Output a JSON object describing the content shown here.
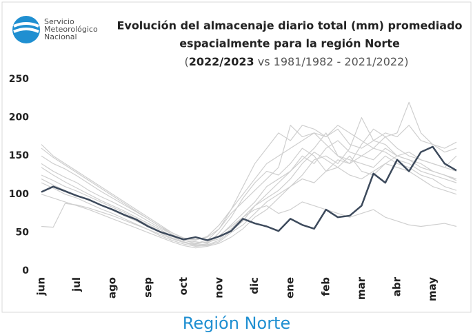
{
  "logo": {
    "line1": "Servicio",
    "line2": "Meteorológico",
    "line3": "Nacional"
  },
  "footer": "Región Norte",
  "chart_data": {
    "type": "line",
    "title": [
      "Evolución del almacenaje diario total (mm) promediado",
      "espacialmente para la región Norte"
    ],
    "subtitle": {
      "open": "(",
      "bold": "2022/2023",
      "rest": " vs 1981/1982 - 2021/2022)"
    },
    "categories": [
      "jun",
      null,
      null,
      "jul",
      null,
      null,
      "ago",
      null,
      null,
      "sep",
      null,
      null,
      "oct",
      null,
      null,
      "nov",
      null,
      null,
      "dic",
      null,
      null,
      "ene",
      null,
      null,
      "feb",
      null,
      null,
      "mar",
      null,
      null,
      "abr",
      null,
      null,
      "may",
      null,
      null
    ],
    "ylim": [
      0,
      250
    ],
    "yticks": [
      0,
      50,
      100,
      150,
      200,
      250
    ],
    "grid": false,
    "series": [
      {
        "color": "#cfcfcf",
        "values": [
          165,
          150,
          140,
          130,
          120,
          110,
          100,
          90,
          80,
          70,
          60,
          50,
          42,
          40,
          45,
          60,
          80,
          100,
          120,
          140,
          150,
          160,
          170,
          180,
          175,
          185,
          165,
          160,
          170,
          180,
          175,
          190,
          170,
          165,
          160,
          168
        ]
      },
      {
        "color": "#cfcfcf",
        "values": [
          140,
          130,
          122,
          115,
          105,
          97,
          90,
          82,
          74,
          65,
          56,
          48,
          40,
          38,
          36,
          45,
          60,
          75,
          90,
          110,
          120,
          130,
          150,
          140,
          160,
          170,
          155,
          150,
          145,
          160,
          150,
          155,
          145,
          140,
          135,
          130
        ]
      },
      {
        "color": "#cfcfcf",
        "values": [
          125,
          118,
          110,
          104,
          97,
          90,
          83,
          76,
          68,
          60,
          52,
          45,
          38,
          34,
          35,
          50,
          70,
          95,
          115,
          130,
          125,
          140,
          160,
          150,
          130,
          145,
          140,
          150,
          160,
          155,
          145,
          140,
          130,
          125,
          120,
          115
        ]
      },
      {
        "color": "#cfcfcf",
        "values": [
          115,
          108,
          100,
          95,
          88,
          81,
          75,
          68,
          61,
          54,
          46,
          40,
          35,
          32,
          33,
          38,
          50,
          60,
          75,
          90,
          100,
          110,
          125,
          145,
          150,
          140,
          160,
          200,
          170,
          165,
          150,
          145,
          140,
          130,
          125,
          120
        ]
      },
      {
        "color": "#cfcfcf",
        "values": [
          150,
          140,
          133,
          124,
          114,
          104,
          95,
          86,
          77,
          68,
          58,
          50,
          43,
          41,
          44,
          55,
          75,
          90,
          105,
          120,
          135,
          190,
          175,
          180,
          165,
          150,
          145,
          140,
          135,
          150,
          140,
          135,
          125,
          120,
          110,
          105
        ]
      },
      {
        "color": "#cfcfcf",
        "values": [
          100,
          95,
          90,
          85,
          80,
          74,
          68,
          62,
          56,
          50,
          44,
          38,
          33,
          30,
          32,
          36,
          44,
          55,
          70,
          80,
          95,
          110,
          120,
          115,
          130,
          135,
          125,
          120,
          130,
          140,
          135,
          130,
          120,
          110,
          105,
          100
        ]
      },
      {
        "color": "#cfcfcf",
        "values": [
          58,
          57,
          88,
          86,
          82,
          77,
          72,
          66,
          60,
          54,
          48,
          42,
          37,
          35,
          38,
          46,
          58,
          70,
          85,
          95,
          105,
          120,
          140,
          155,
          145,
          135,
          150,
          130,
          125,
          140,
          150,
          145,
          135,
          130,
          125,
          118
        ]
      },
      {
        "color": "#cfcfcf",
        "values": [
          135,
          125,
          116,
          108,
          100,
          92,
          85,
          78,
          70,
          62,
          54,
          46,
          40,
          36,
          37,
          42,
          55,
          70,
          80,
          85,
          75,
          80,
          90,
          85,
          80,
          75,
          70,
          75,
          80,
          70,
          65,
          60,
          58,
          60,
          62,
          58
        ]
      },
      {
        "color": "#cfcfcf",
        "values": [
          160,
          148,
          138,
          128,
          118,
          108,
          98,
          88,
          78,
          68,
          58,
          48,
          40,
          36,
          40,
          55,
          80,
          110,
          140,
          160,
          180,
          170,
          190,
          185,
          175,
          190,
          180,
          170,
          160,
          175,
          180,
          220,
          180,
          165,
          155,
          160
        ]
      },
      {
        "color": "#cfcfcf",
        "values": [
          120,
          112,
          105,
          98,
          92,
          86,
          79,
          72,
          65,
          58,
          50,
          43,
          37,
          33,
          34,
          40,
          52,
          65,
          85,
          100,
          115,
          130,
          145,
          160,
          180,
          150,
          140,
          165,
          185,
          175,
          160,
          150,
          145,
          140,
          135,
          150
        ]
      },
      {
        "color": "#3d4a5c",
        "values": [
          103,
          110,
          104,
          98,
          93,
          86,
          80,
          73,
          67,
          58,
          51,
          46,
          41,
          44,
          40,
          45,
          52,
          68,
          62,
          58,
          52,
          68,
          60,
          55,
          80,
          70,
          72,
          85,
          127,
          115,
          145,
          130,
          155,
          162,
          140,
          131
        ]
      }
    ]
  }
}
